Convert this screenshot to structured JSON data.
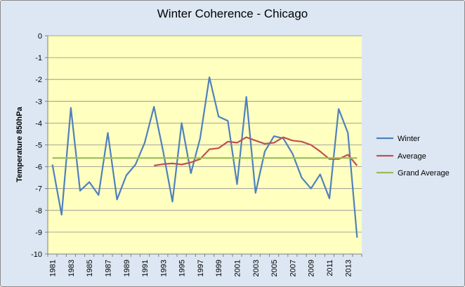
{
  "chart_data": {
    "type": "line",
    "title": "Winter Coherence - Chicago",
    "ylabel": "Temperature 850hPa",
    "xlabel": "",
    "ylim": [
      -10,
      0
    ],
    "yticks": [
      0,
      -1,
      -2,
      -3,
      -4,
      -5,
      -6,
      -7,
      -8,
      -9,
      -10
    ],
    "xlim": [
      1981,
      2014
    ],
    "xticks": [
      1981,
      1983,
      1985,
      1987,
      1989,
      1991,
      1993,
      1995,
      1997,
      1999,
      2001,
      2003,
      2005,
      2007,
      2009,
      2011,
      2013
    ],
    "grid": "horizontal",
    "legend_position": "right",
    "series": [
      {
        "name": "Winter",
        "color": "#4f81bd",
        "x": [
          1981,
          1982,
          1983,
          1984,
          1985,
          1986,
          1987,
          1988,
          1989,
          1990,
          1991,
          1992,
          1993,
          1994,
          1995,
          1996,
          1997,
          1998,
          1999,
          2000,
          2001,
          2002,
          2003,
          2004,
          2005,
          2006,
          2007,
          2008,
          2009,
          2010,
          2011,
          2012,
          2013,
          2014
        ],
        "values": [
          -5.9,
          -8.2,
          -3.3,
          -7.1,
          -6.7,
          -7.3,
          -4.45,
          -7.5,
          -6.4,
          -5.9,
          -4.9,
          -3.25,
          -5.3,
          -7.6,
          -4.0,
          -6.3,
          -4.7,
          -1.9,
          -3.7,
          -3.9,
          -6.8,
          -2.8,
          -7.2,
          -5.3,
          -4.6,
          -4.7,
          -5.4,
          -6.5,
          -7.0,
          -6.35,
          -7.45,
          -3.35,
          -4.45,
          -9.25
        ]
      },
      {
        "name": "Average",
        "color": "#c0504d",
        "x": [
          1992,
          1993,
          1994,
          1995,
          1996,
          1997,
          1998,
          1999,
          2000,
          2001,
          2002,
          2003,
          2004,
          2005,
          2006,
          2007,
          2008,
          2009,
          2010,
          2011,
          2012,
          2013,
          2014
        ],
        "values": [
          -5.95,
          -5.88,
          -5.85,
          -5.9,
          -5.8,
          -5.65,
          -5.2,
          -5.15,
          -4.85,
          -4.9,
          -4.65,
          -4.8,
          -4.95,
          -4.9,
          -4.65,
          -4.8,
          -4.85,
          -5.0,
          -5.3,
          -5.65,
          -5.65,
          -5.45,
          -5.95
        ]
      },
      {
        "name": "Grand Average",
        "color": "#9bbb59",
        "x": [
          1981,
          2014
        ],
        "values": [
          -5.6,
          -5.6
        ]
      }
    ]
  }
}
